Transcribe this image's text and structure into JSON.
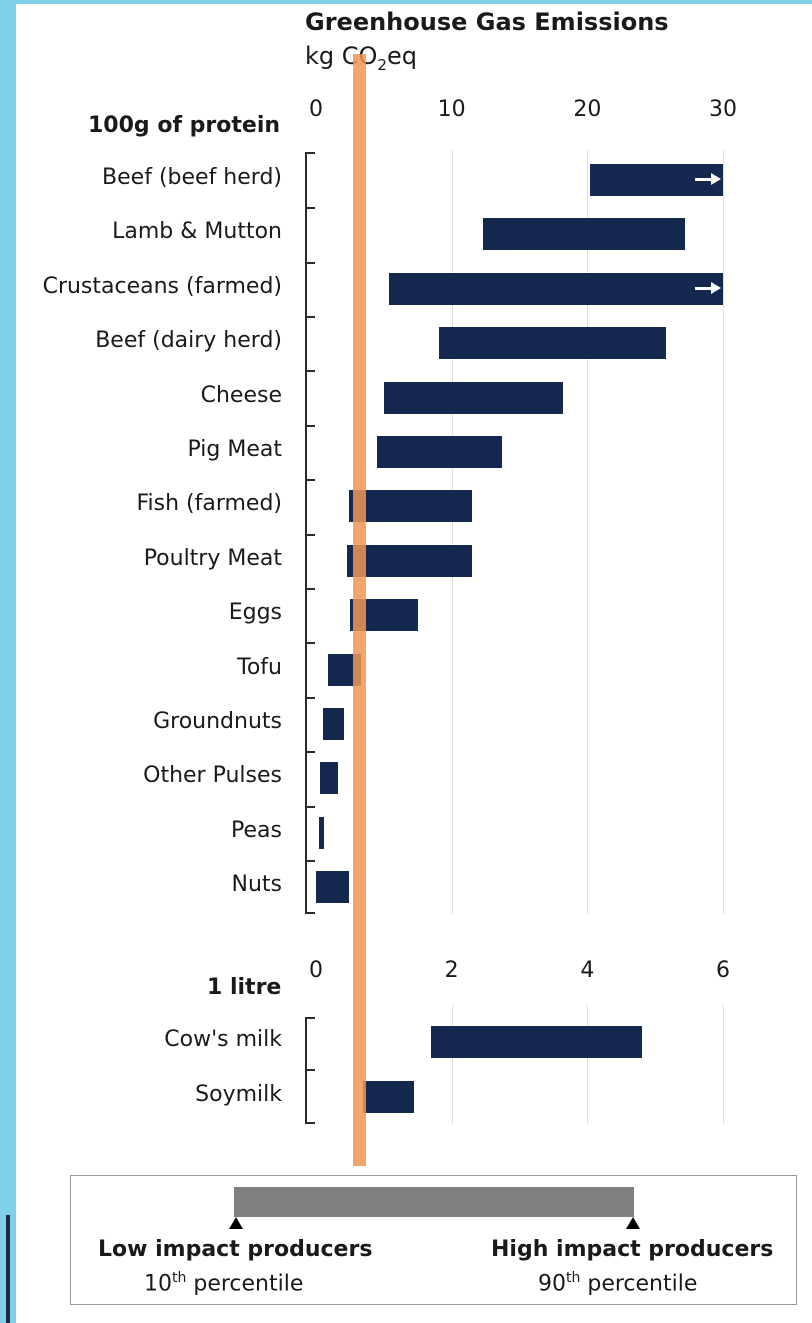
{
  "colors": {
    "bar": "#152850",
    "reference_band": "#f0965a",
    "legend_bar": "#7f7f7f",
    "frame_strip": "#7fd0e8"
  },
  "chart_data": [
    {
      "type": "bar",
      "orientation": "horizontal",
      "subtype": "range",
      "title": "Greenhouse Gas Emissions",
      "unit_prefix": "kg CO",
      "unit_subscript": "2",
      "unit_suffix": "eq",
      "section_label": "100g of protein",
      "xlim": [
        0,
        30
      ],
      "ticks": [
        0,
        10,
        20,
        30
      ],
      "grid": true,
      "categories": [
        "Beef (beef herd)",
        "Lamb & Mutton",
        "Crustaceans (farmed)",
        "Beef (dairy herd)",
        "Cheese",
        "Pig Meat",
        "Fish (farmed)",
        "Poultry Meat",
        "Eggs",
        "Tofu",
        "Groundnuts",
        "Other Pulses",
        "Peas",
        "Nuts"
      ],
      "series": [
        {
          "low": [
            20.2,
            12.3,
            5.4,
            9.1,
            5.0,
            4.5,
            2.4,
            2.3,
            2.5,
            0.9,
            0.5,
            0.3,
            0.2,
            0.0
          ],
          "high": [
            30,
            27.2,
            30,
            25.8,
            18.2,
            13.7,
            11.5,
            11.5,
            7.5,
            3.3,
            2.1,
            1.6,
            0.6,
            2.4
          ],
          "exceeds_axis": [
            true,
            false,
            true,
            false,
            false,
            false,
            false,
            false,
            false,
            false,
            false,
            false,
            false,
            false
          ]
        }
      ]
    },
    {
      "type": "bar",
      "orientation": "horizontal",
      "subtype": "range",
      "section_label": "1 litre",
      "xlim": [
        0,
        6
      ],
      "ticks": [
        0,
        2,
        4,
        6
      ],
      "grid": true,
      "categories": [
        "Cow's milk",
        "Soymilk"
      ],
      "series": [
        {
          "low": [
            1.7,
            0.7
          ],
          "high": [
            4.8,
            1.45
          ],
          "exceeds_axis": [
            false,
            false
          ]
        }
      ]
    }
  ],
  "legend": {
    "low_label": "Low impact producers",
    "low_number": "10",
    "low_sup": "th",
    "low_suffix": " percentile",
    "high_label": "High impact producers",
    "high_number": "90",
    "high_sup": "th",
    "high_suffix": " percentile"
  }
}
